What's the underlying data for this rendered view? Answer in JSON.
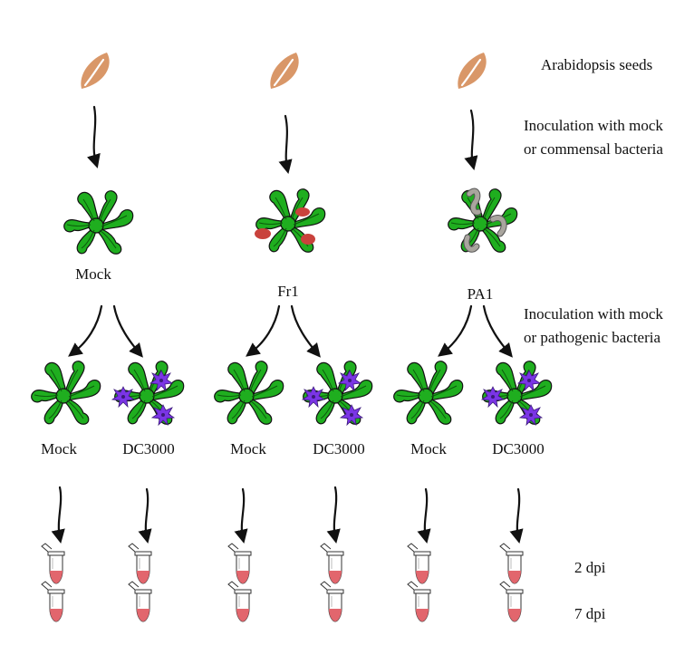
{
  "stages": {
    "seeds": "Arabidopsis seeds",
    "commensal_line1": "Inoculation with mock",
    "commensal_line2": "or commensal bacteria",
    "pathogenic_line1": "Inoculation with mock",
    "pathogenic_line2": "or pathogenic bacteria",
    "time1": "2 dpi",
    "time2": "7 dpi"
  },
  "commensal_treatments": [
    "Mock",
    "Fr1",
    "PA1"
  ],
  "pathogen_treatments": [
    "Mock",
    "DC3000",
    "Mock",
    "DC3000",
    "Mock",
    "DC3000"
  ],
  "colors": {
    "seed": "#d99768",
    "plant": "#1fae1f",
    "fr1": "#c9423c",
    "pa1": "#a9a59e",
    "dc3000": "#7b35e6",
    "tube_liquid": "#e2666d"
  }
}
